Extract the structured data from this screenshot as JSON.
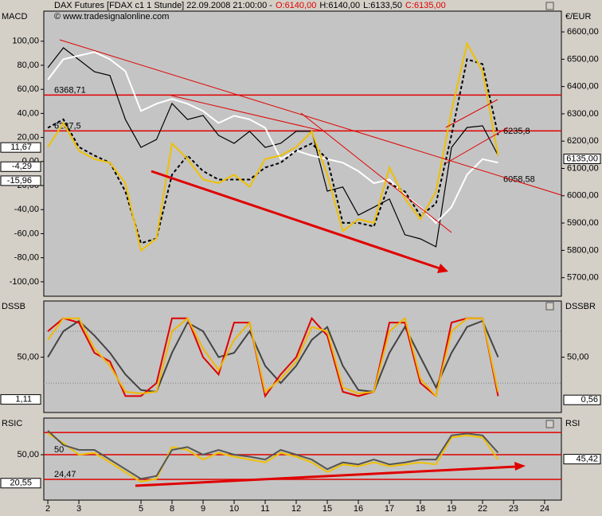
{
  "header": {
    "instrument": "DAX Futures [FDAX c1  1 Stunde] 22.09.2008 21:00:00 -",
    "open": "O:6140,00",
    "high": "H:6140,00",
    "low": "L:6133,50",
    "close": "C:6135,00",
    "copyright": "© www.tradesignalonline.com"
  },
  "chart_data": [
    {
      "type": "line",
      "title": "MACD",
      "right_title": "€/EUR",
      "x": [
        0,
        0.5,
        1,
        1.5,
        2,
        2.5,
        3,
        3.5,
        4,
        4.5,
        5,
        5.5,
        6,
        6.5,
        7,
        7.5,
        8,
        8.5,
        9,
        9.5,
        10,
        10.5,
        11,
        11.5,
        12,
        12.5,
        13,
        13.5,
        14,
        14.5
      ],
      "xlim": [
        -0.13,
        16.54
      ],
      "ylim": [
        -112,
        125
      ],
      "y2lim": [
        5632,
        6676
      ],
      "yticks": [
        {
          "value": 100,
          "label": "100,00"
        },
        {
          "value": 80,
          "label": "80,00"
        },
        {
          "value": 60,
          "label": "60,00"
        },
        {
          "value": 40,
          "label": "40,00"
        },
        {
          "value": 20,
          "label": "20,00"
        },
        {
          "value": 0,
          "label": "0,00"
        },
        {
          "value": -20,
          "label": "-20,00"
        },
        {
          "value": -40,
          "label": "-40,00"
        },
        {
          "value": -60,
          "label": "-60,00"
        },
        {
          "value": -80,
          "label": "-80,00"
        },
        {
          "value": -100,
          "label": "-100,00"
        }
      ],
      "y2ticks": [
        {
          "value": 6600,
          "label": "6600,00"
        },
        {
          "value": 6500,
          "label": "6500,00"
        },
        {
          "value": 6400,
          "label": "6400,00"
        },
        {
          "value": 6300,
          "label": "6300,00"
        },
        {
          "value": 6200,
          "label": "6200,00"
        },
        {
          "value": 6100,
          "label": "6100,00"
        },
        {
          "value": 6000,
          "label": "6000,00"
        },
        {
          "value": 5900,
          "label": "5900,00"
        },
        {
          "value": 5800,
          "label": "5800,00"
        },
        {
          "value": 5700,
          "label": "5700,00"
        }
      ],
      "levels": [
        6368.71,
        6237.5
      ],
      "level_labels": [
        "6368,71",
        "6237,5"
      ],
      "level_axis": "y2",
      "level_color": "#e00000",
      "annotations": [
        {
          "value": 6235.8,
          "label": "6235,8"
        },
        {
          "value": 6058.58,
          "label": "6058,58"
        }
      ],
      "last_values": [
        {
          "value": 11.67,
          "label": "11,67"
        },
        {
          "value": -4.29,
          "label": "-4,29"
        },
        {
          "value": -15.96,
          "label": "-15,96"
        },
        {
          "value": 6135,
          "label": "6135,00",
          "axis": "y2"
        }
      ],
      "series": [
        {
          "color": "#000000",
          "axis": "y2",
          "values": [
            6469,
            6542,
            6498,
            6454,
            6440,
            6279,
            6177,
            6206,
            6338,
            6279,
            6294,
            6221,
            6192,
            6236,
            6177,
            6192,
            6236,
            6236,
            6017,
            6032,
            5929,
            5958,
            5988,
            5857,
            5842,
            5813,
            6177,
            6250,
            6256,
            6148
          ]
        },
        {
          "color": "#ffffff",
          "values": [
            68,
            85,
            88,
            91,
            85,
            75,
            42,
            48,
            52,
            48,
            42,
            32,
            38,
            35,
            28,
            2,
            9,
            5,
            2,
            -1,
            -8,
            -18,
            -15,
            -28,
            -38,
            -51,
            -38,
            -11,
            2,
            -1
          ]
        },
        {
          "color": "#000000",
          "style": "dashed",
          "values": [
            28,
            35,
            12,
            5,
            -1,
            -25,
            -68,
            -64,
            -11,
            5,
            -8,
            -15,
            -15,
            -15,
            -5,
            -1,
            9,
            15,
            2,
            -51,
            -51,
            -54,
            -18,
            -25,
            -45,
            -35,
            22,
            85,
            81,
            22
          ]
        },
        {
          "color": "#f0c000",
          "values": [
            12,
            32,
            9,
            2,
            -1,
            -18,
            -74,
            -64,
            15,
            2,
            -15,
            -18,
            -11,
            -21,
            2,
            5,
            12,
            25,
            -11,
            -58,
            -48,
            -51,
            -5,
            -31,
            -48,
            -25,
            42,
            98,
            75,
            5
          ]
        }
      ]
    },
    {
      "type": "line",
      "title": "DSSB",
      "right_title": "DSSBR",
      "x": [
        0,
        0.5,
        1,
        1.5,
        2,
        2.5,
        3,
        3.5,
        4,
        4.5,
        5,
        5.5,
        6,
        6.5,
        7,
        7.5,
        8,
        8.5,
        9,
        9.5,
        10,
        10.5,
        11,
        11.5,
        12,
        12.5,
        13,
        13.5,
        14,
        14.5
      ],
      "xlim": [
        -0.13,
        16.54
      ],
      "ylim": [
        -14,
        115
      ],
      "yticks": [
        {
          "value": 50,
          "label": "50,00"
        }
      ],
      "y2ticks": [
        {
          "value": 50,
          "label": "50,00"
        }
      ],
      "levels": [
        80,
        20
      ],
      "level_color": "#808080",
      "level_style": "dotted",
      "last_values": [
        {
          "value": 1.11,
          "label": "1,11"
        },
        {
          "value": 0.56,
          "label": "0,56",
          "axis": "y2"
        }
      ],
      "series": [
        {
          "color": "#444444",
          "values": [
            50,
            80,
            92,
            75,
            55,
            30,
            12,
            10,
            55,
            90,
            80,
            50,
            55,
            80,
            40,
            20,
            40,
            70,
            85,
            40,
            12,
            10,
            55,
            85,
            50,
            15,
            55,
            85,
            92,
            50
          ]
        },
        {
          "color": "#e00000",
          "values": [
            80,
            95,
            90,
            55,
            45,
            5,
            5,
            20,
            95,
            95,
            50,
            30,
            90,
            90,
            5,
            30,
            50,
            95,
            75,
            10,
            5,
            10,
            90,
            90,
            20,
            5,
            90,
            95,
            95,
            5
          ]
        },
        {
          "color": "#f0b800",
          "values": [
            70,
            95,
            95,
            60,
            40,
            10,
            8,
            10,
            80,
            95,
            60,
            35,
            70,
            90,
            10,
            25,
            45,
            85,
            80,
            15,
            8,
            10,
            80,
            95,
            25,
            5,
            80,
            95,
            95,
            10
          ]
        }
      ]
    },
    {
      "type": "line",
      "title": "RSIC",
      "right_title": "RSI",
      "x": [
        0,
        0.5,
        1,
        1.5,
        2,
        2.5,
        3,
        3.5,
        4,
        4.5,
        5,
        5.5,
        6,
        6.5,
        7,
        7.5,
        8,
        8.5,
        9,
        9.5,
        10,
        10.5,
        11,
        11.5,
        12,
        12.5,
        13,
        13.5,
        14,
        14.5
      ],
      "xlim": [
        -0.13,
        16.54
      ],
      "ylim": [
        3,
        88
      ],
      "yticks": [
        {
          "value": 50,
          "label": "50,00"
        }
      ],
      "xticks": [
        {
          "value": 0,
          "label": "2"
        },
        {
          "value": 1,
          "label": "3"
        },
        {
          "value": 3,
          "label": "5"
        },
        {
          "value": 4,
          "label": "8"
        },
        {
          "value": 5,
          "label": "9"
        },
        {
          "value": 6,
          "label": "10"
        },
        {
          "value": 7,
          "label": "11"
        },
        {
          "value": 8,
          "label": "12"
        },
        {
          "value": 9,
          "label": "15"
        },
        {
          "value": 10,
          "label": "16"
        },
        {
          "value": 11,
          "label": "17"
        },
        {
          "value": 12,
          "label": "18"
        },
        {
          "value": 13,
          "label": "19"
        },
        {
          "value": 14,
          "label": "22"
        },
        {
          "value": 15,
          "label": "23"
        },
        {
          "value": 16,
          "label": "24"
        }
      ],
      "levels": [
        73,
        50,
        24.47
      ],
      "level_labels": [
        null,
        "50",
        "24,47"
      ],
      "level_color": "#e00000",
      "last_values": [
        {
          "value": 20.55,
          "label": "20,55"
        },
        {
          "value": 45.42,
          "label": "45,42",
          "axis": "y2"
        }
      ],
      "series": [
        {
          "color": "#f0c000",
          "values": [
            72,
            62,
            50,
            52,
            42,
            32,
            22,
            25,
            58,
            55,
            45,
            52,
            48,
            45,
            42,
            52,
            48,
            42,
            32,
            40,
            38,
            42,
            38,
            40,
            42,
            40,
            68,
            70,
            68,
            45
          ]
        },
        {
          "color": "#555555",
          "values": [
            75,
            60,
            55,
            55,
            45,
            35,
            25,
            28,
            55,
            58,
            50,
            55,
            50,
            48,
            45,
            55,
            50,
            45,
            35,
            42,
            40,
            45,
            40,
            42,
            45,
            45,
            70,
            72,
            70,
            52
          ]
        }
      ]
    }
  ]
}
